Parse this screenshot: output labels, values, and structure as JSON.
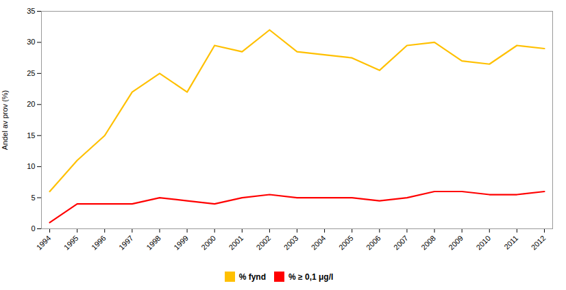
{
  "chart_data": {
    "type": "line",
    "x": [
      1994,
      1995,
      1996,
      1997,
      1998,
      1999,
      2000,
      2001,
      2002,
      2003,
      2004,
      2005,
      2006,
      2007,
      2008,
      2009,
      2010,
      2011,
      2012
    ],
    "series": [
      {
        "name": "% fynd",
        "color": "#FFC000",
        "values": [
          6,
          11,
          15,
          22,
          25,
          22,
          29.5,
          28.5,
          32,
          28.5,
          28,
          27.5,
          25.5,
          29.5,
          30,
          27,
          26.5,
          29.5,
          29
        ]
      },
      {
        "name": "% ≥ 0,1 μg/l",
        "color": "#FF0000",
        "values": [
          1,
          4,
          4,
          4,
          5,
          4.5,
          4,
          5,
          5.5,
          5,
          5,
          5,
          4.5,
          5,
          6,
          6,
          5.5,
          5.5,
          6
        ]
      }
    ],
    "y_label": "Andel av prov (%)",
    "xlim": [
      1993.7,
      2012.3
    ],
    "xticks": [
      1994,
      1995,
      1996,
      1997,
      1998,
      1999,
      2000,
      2001,
      2002,
      2003,
      2004,
      2005,
      2006,
      2007,
      2008,
      2009,
      2010,
      2011,
      2012
    ],
    "ylim": [
      0,
      35
    ],
    "yticks": [
      0,
      5,
      10,
      15,
      20,
      25,
      30,
      35
    ],
    "grid": false,
    "legend": "bottom"
  }
}
